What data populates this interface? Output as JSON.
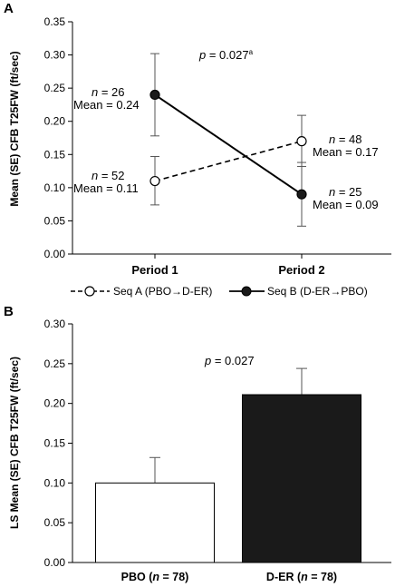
{
  "chart_data": [
    {
      "panel_label": "A",
      "type": "line",
      "ylabel": "Mean (SE) CFB T25FW (ft/sec)",
      "ylim": [
        0,
        0.35
      ],
      "yticks": [
        "0.00",
        "0.05",
        "0.10",
        "0.15",
        "0.20",
        "0.25",
        "0.30",
        "0.35"
      ],
      "categories": [
        "Period 1",
        "Period 2"
      ],
      "p_label": "p",
      "p_text": " = 0.027",
      "p_sup": "a",
      "series": [
        {
          "name": "Seq A (PBO→D-ER)",
          "style": "dashed",
          "marker": "open",
          "values": [
            0.11,
            0.17
          ],
          "se_upper": [
            0.147,
            0.209
          ],
          "se_lower": [
            0.074,
            0.132
          ],
          "annotations": [
            {
              "n_prefix": "n",
              "n_text": " = 52",
              "mean_text": "Mean = 0.11"
            },
            {
              "n_prefix": "n",
              "n_text": " = 48",
              "mean_text": "Mean = 0.17"
            }
          ]
        },
        {
          "name": "Seq B (D-ER→PBO)",
          "style": "solid",
          "marker": "filled",
          "values": [
            0.24,
            0.09
          ],
          "se_upper": [
            0.302,
            0.138
          ],
          "se_lower": [
            0.178,
            0.042
          ],
          "annotations": [
            {
              "n_prefix": "n",
              "n_text": " = 26",
              "mean_text": "Mean = 0.24"
            },
            {
              "n_prefix": "n",
              "n_text": " = 25",
              "mean_text": "Mean = 0.09"
            }
          ]
        }
      ],
      "legend_position": "bottom",
      "grid": false
    },
    {
      "panel_label": "B",
      "type": "bar",
      "ylabel": "LS Mean (SE) CFB T25FW (ft/sec)",
      "ylim": [
        0,
        0.3
      ],
      "yticks": [
        "0.00",
        "0.05",
        "0.10",
        "0.15",
        "0.20",
        "0.25",
        "0.30"
      ],
      "p_label": "p",
      "p_text": " = 0.027",
      "bars": [
        {
          "label_main": "PBO (",
          "n_prefix": "n",
          "label_tail": " = 78)",
          "value": 0.1,
          "se_upper": 0.132,
          "fill": "#ffffff"
        },
        {
          "label_main": "D-ER (",
          "n_prefix": "n",
          "label_tail": " = 78)",
          "value": 0.211,
          "se_upper": 0.244,
          "fill": "#1a1a1a"
        }
      ],
      "grid": false
    }
  ]
}
